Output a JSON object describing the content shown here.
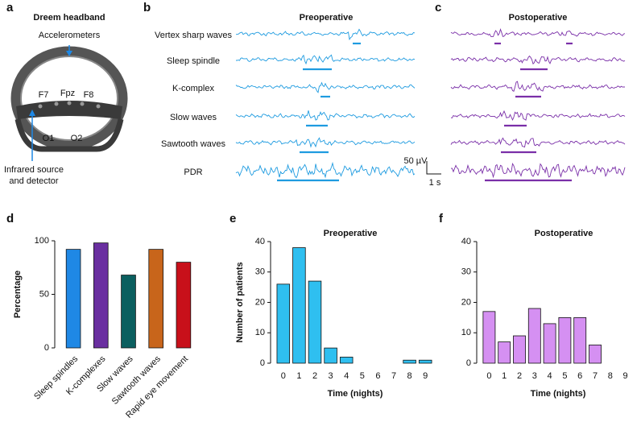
{
  "panel_labels": [
    "a",
    "b",
    "c",
    "d",
    "e",
    "f"
  ],
  "headband": {
    "title": "Dreem headband",
    "accelerometers": "Accelerometers",
    "electrodes": [
      "F7",
      "Fpz",
      "F8",
      "O1",
      "O2"
    ],
    "infrared": [
      "Infrared source",
      "and detector"
    ]
  },
  "eeg": {
    "titles": [
      "Preoperative",
      "Postoperative"
    ],
    "rows": [
      "Vertex sharp waves",
      "Sleep spindle",
      "K-complex",
      "Slow waves",
      "Sawtooth waves",
      "PDR"
    ],
    "scale": [
      "50 µV",
      "1 s"
    ]
  },
  "chart_data": [
    {
      "type": "bar",
      "categories": [
        "Sleep spindles",
        "K-complexes",
        "Slow waves",
        "Sawtooth waves",
        "Rapid eye movement"
      ],
      "values": [
        92,
        98,
        68,
        92,
        80
      ],
      "colors": [
        "#1f88e5",
        "#6a2fa0",
        "#0b5f5f",
        "#c8651b",
        "#c8101a"
      ],
      "y_label": "Percentage",
      "ylim": [
        0,
        100
      ],
      "yticks": [
        0,
        50,
        100
      ]
    },
    {
      "type": "bar",
      "title": "Preoperative",
      "categories": [
        "0",
        "1",
        "2",
        "3",
        "4",
        "5",
        "6",
        "7",
        "8",
        "9"
      ],
      "values": [
        26,
        38,
        27,
        5,
        2,
        0,
        0,
        0,
        1,
        1
      ],
      "color": "#2fbff0",
      "x_label": "Time (nights)",
      "y_label": "Number of patients",
      "ylim": [
        0,
        40
      ],
      "yticks": [
        0,
        10,
        20,
        30,
        40
      ]
    },
    {
      "type": "bar",
      "title": "Postoperative",
      "categories": [
        "0",
        "1",
        "2",
        "3",
        "4",
        "5",
        "6",
        "7",
        "8",
        "9"
      ],
      "values": [
        17,
        7,
        9,
        18,
        13,
        15,
        15,
        6,
        0,
        0
      ],
      "color": "#d590f2",
      "x_label": "Time (nights)",
      "ylim": [
        0,
        40
      ],
      "yticks": [
        0,
        10,
        20,
        30,
        40
      ]
    }
  ]
}
